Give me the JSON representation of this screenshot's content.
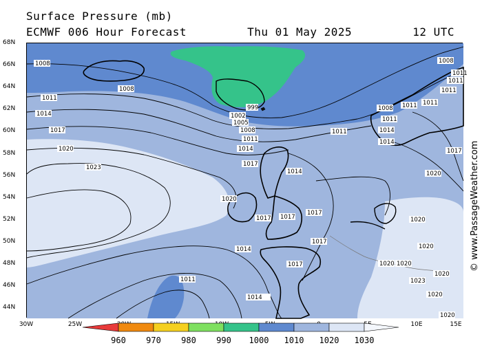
{
  "title": {
    "line1": "Surface Pressure (mb)",
    "model": "ECMWF 006 Hour Forecast",
    "date": "Thu 01 May 2025",
    "time": "12 UTC"
  },
  "watermark": "© www.PassageWeather.com",
  "axes": {
    "lat_labels": [
      "68N",
      "66N",
      "64N",
      "62N",
      "60N",
      "58N",
      "56N",
      "54N",
      "52N",
      "50N",
      "48N",
      "46N",
      "44N"
    ],
    "lon_labels": [
      "30W",
      "25W",
      "20W",
      "15W",
      "10W",
      "5W",
      "0",
      "5E",
      "10E",
      "15E"
    ]
  },
  "legend": {
    "levels": [
      "960",
      "970",
      "980",
      "990",
      "1000",
      "1010",
      "1020",
      "1030"
    ],
    "colors": [
      "#e83a3a",
      "#f08a10",
      "#f5d020",
      "#7fe060",
      "#35c38a",
      "#5f89cf",
      "#9fb6de",
      "#dde6f5"
    ]
  },
  "fill_colors": {
    "band_1000_1010": "#5f89cf",
    "band_1010_1020": "#9fb6de",
    "band_1020_1030": "#dde6f5",
    "band_990_1000": "#35c38a",
    "land": "#111111"
  },
  "isobar_labels": [
    {
      "text": "1008",
      "id": "iso-1008-nw"
    },
    {
      "text": "1008",
      "id": "iso-1008-iceland"
    },
    {
      "text": "1011",
      "id": "iso-1011-w"
    },
    {
      "text": "1014",
      "id": "iso-1014-w"
    },
    {
      "text": "1017",
      "id": "iso-1017-w"
    },
    {
      "text": "1020",
      "id": "iso-1020-w"
    },
    {
      "text": "1023",
      "id": "iso-1023-w"
    },
    {
      "text": "999",
      "id": "iso-999"
    },
    {
      "text": "1002",
      "id": "iso-1002"
    },
    {
      "text": "1005",
      "id": "iso-1005"
    },
    {
      "text": "1008",
      "id": "iso-1008-c"
    },
    {
      "text": "1011",
      "id": "iso-1011-c"
    },
    {
      "text": "1014",
      "id": "iso-1014-c"
    },
    {
      "text": "1017",
      "id": "iso-1017-c"
    },
    {
      "text": "1014",
      "id": "iso-1014-ns"
    },
    {
      "text": "1011",
      "id": "iso-1011-ns"
    },
    {
      "text": "1020",
      "id": "iso-1020-ie"
    },
    {
      "text": "1017",
      "id": "iso-1017-uk1"
    },
    {
      "text": "1017",
      "id": "iso-1017-uk2"
    },
    {
      "text": "1017",
      "id": "iso-1017-uk3"
    },
    {
      "text": "1017",
      "id": "iso-1017-fr"
    },
    {
      "text": "1014",
      "id": "iso-1014-bis"
    },
    {
      "text": "1017",
      "id": "iso-1017-bis"
    },
    {
      "text": "1011",
      "id": "iso-1011-s"
    },
    {
      "text": "1014",
      "id": "iso-1014-s"
    },
    {
      "text": "1008",
      "id": "iso-1008-no1"
    },
    {
      "text": "1011",
      "id": "iso-1011-no1"
    },
    {
      "text": "1011",
      "id": "iso-1011-no2"
    },
    {
      "text": "1011",
      "id": "iso-1011-no3"
    },
    {
      "text": "1008",
      "id": "iso-1008-no"
    },
    {
      "text": "1011",
      "id": "iso-1011-no4"
    },
    {
      "text": "1011",
      "id": "iso-1011-no5"
    },
    {
      "text": "1011",
      "id": "iso-1011-sw"
    },
    {
      "text": "1014",
      "id": "iso-1014-sw1"
    },
    {
      "text": "1014",
      "id": "iso-1014-sw2"
    },
    {
      "text": "1017",
      "id": "iso-1017-e"
    },
    {
      "text": "1020",
      "id": "iso-1020-e1"
    },
    {
      "text": "1020",
      "id": "iso-1020-e2"
    },
    {
      "text": "1020",
      "id": "iso-1020-e3"
    },
    {
      "text": "1020",
      "id": "iso-1020-alps1"
    },
    {
      "text": "1020",
      "id": "iso-1020-alps2"
    },
    {
      "text": "1023",
      "id": "iso-1023-alps"
    },
    {
      "text": "1020",
      "id": "iso-1020-alps3"
    },
    {
      "text": "1020",
      "id": "iso-1020-s"
    },
    {
      "text": "1020",
      "id": "iso-1020-s2"
    }
  ]
}
